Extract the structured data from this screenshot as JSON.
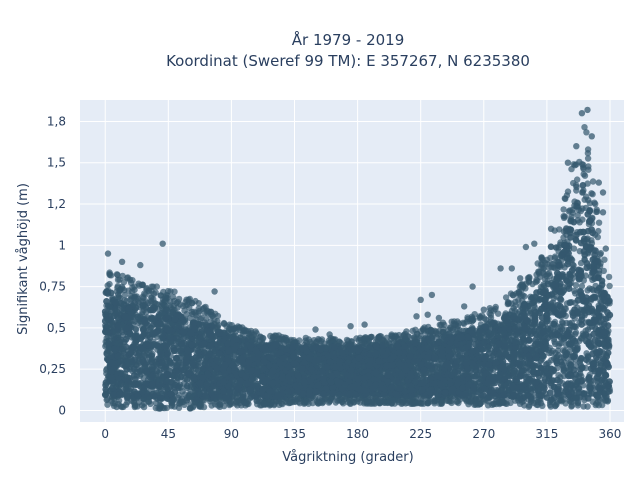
{
  "chart_data": {
    "type": "scatter",
    "title_line1": "År 1979 - 2019",
    "title_line2": "Koordinat (Sweref 99 TM): E 357267, N 6235380",
    "xlabel": "Vågriktning (grader)",
    "ylabel": "Signifikant våghöjd (m)",
    "xlim": [
      -18,
      370
    ],
    "ylim": [
      -0.07,
      1.88
    ],
    "x_ticks": [
      0,
      45,
      90,
      135,
      180,
      225,
      270,
      315,
      360
    ],
    "x_tick_labels": [
      "0",
      "45",
      "90",
      "135",
      "180",
      "225",
      "270",
      "315",
      "360"
    ],
    "y_ticks": [
      0,
      0.25,
      0.5,
      0.75,
      1,
      1.25,
      1.5,
      1.75
    ],
    "y_tick_labels": [
      "0",
      "0,25",
      "0,5",
      "0,75",
      "1",
      "1,2",
      "1,5",
      "1,8"
    ],
    "grid": true,
    "marker_color": "#34586e",
    "plot_bg": "#e5ecf6",
    "envelope": {
      "x": [
        0,
        5,
        10,
        20,
        30,
        40,
        45,
        55,
        65,
        75,
        80,
        90,
        100,
        110,
        120,
        135,
        150,
        165,
        180,
        195,
        210,
        225,
        240,
        255,
        270,
        285,
        295,
        305,
        315,
        322,
        328,
        333,
        338,
        342,
        345,
        348,
        352,
        356,
        360
      ],
      "upper": [
        0.9,
        0.88,
        0.82,
        0.8,
        0.78,
        0.76,
        0.74,
        0.7,
        0.66,
        0.62,
        0.58,
        0.52,
        0.5,
        0.47,
        0.46,
        0.44,
        0.44,
        0.44,
        0.44,
        0.45,
        0.47,
        0.5,
        0.53,
        0.56,
        0.6,
        0.68,
        0.75,
        0.85,
        0.98,
        1.12,
        1.3,
        1.5,
        1.7,
        1.78,
        1.6,
        1.4,
        1.15,
        0.95,
        0.8
      ],
      "lower": [
        0.03,
        0.02,
        0.02,
        0.02,
        0.02,
        0.01,
        0.01,
        0.01,
        0.01,
        0.02,
        0.02,
        0.03,
        0.03,
        0.03,
        0.03,
        0.04,
        0.04,
        0.04,
        0.04,
        0.04,
        0.04,
        0.04,
        0.04,
        0.04,
        0.03,
        0.03,
        0.03,
        0.02,
        0.02,
        0.02,
        0.02,
        0.02,
        0.02,
        0.02,
        0.02,
        0.03,
        0.03,
        0.03,
        0.03
      ]
    },
    "outliers": [
      {
        "x": 41,
        "y": 1.01
      },
      {
        "x": 2,
        "y": 0.95
      },
      {
        "x": 12,
        "y": 0.9
      },
      {
        "x": 25,
        "y": 0.88
      },
      {
        "x": 78,
        "y": 0.72
      },
      {
        "x": 225,
        "y": 0.67
      },
      {
        "x": 233,
        "y": 0.7
      },
      {
        "x": 262,
        "y": 0.75
      },
      {
        "x": 282,
        "y": 0.86
      },
      {
        "x": 300,
        "y": 0.99
      },
      {
        "x": 306,
        "y": 1.01
      },
      {
        "x": 318,
        "y": 1.1
      },
      {
        "x": 340,
        "y": 1.8
      },
      {
        "x": 344,
        "y": 1.82
      },
      {
        "x": 352,
        "y": 1.38
      },
      {
        "x": 355,
        "y": 1.32
      },
      {
        "x": 355,
        "y": 1.2
      },
      {
        "x": 357,
        "y": 0.98
      },
      {
        "x": 222,
        "y": 0.57
      },
      {
        "x": 238,
        "y": 0.56
      },
      {
        "x": 150,
        "y": 0.49
      },
      {
        "x": 160,
        "y": 0.46
      },
      {
        "x": 175,
        "y": 0.51
      },
      {
        "x": 185,
        "y": 0.52
      },
      {
        "x": 230,
        "y": 0.58
      },
      {
        "x": 256,
        "y": 0.63
      },
      {
        "x": 270,
        "y": 0.61
      },
      {
        "x": 290,
        "y": 0.86
      },
      {
        "x": 296,
        "y": 0.8
      },
      {
        "x": 330,
        "y": 1.5
      },
      {
        "x": 336,
        "y": 1.6
      },
      {
        "x": 347,
        "y": 1.66
      }
    ]
  }
}
